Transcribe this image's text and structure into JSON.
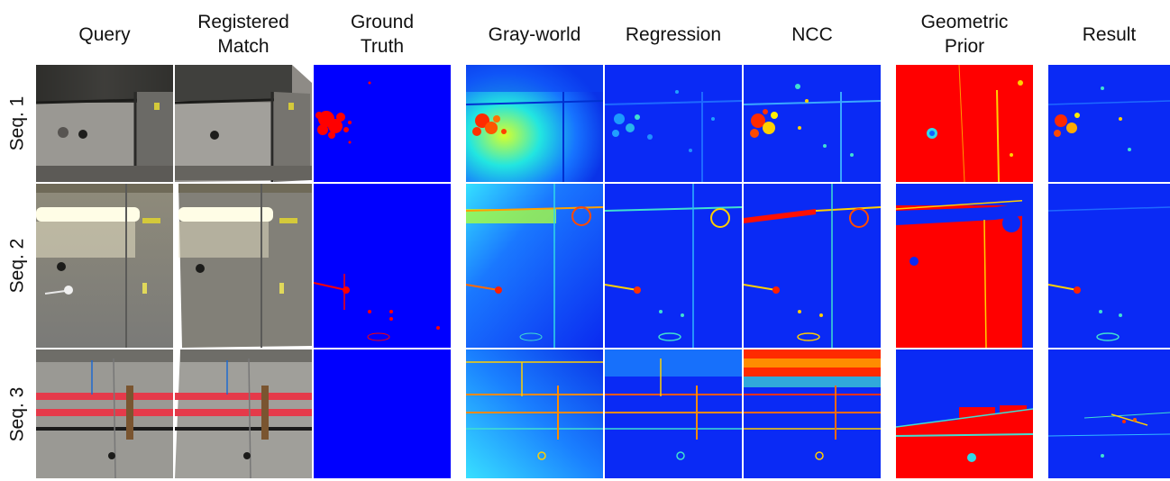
{
  "figure": {
    "column_headers": [
      "Query",
      "Registered\nMatch",
      "Ground\nTruth",
      "Gray-world",
      "Regression",
      "NCC",
      "Geometric\nPrior",
      "Result"
    ],
    "row_labels": [
      "Seq. 1",
      "Seq. 2",
      "Seq. 3"
    ]
  }
}
